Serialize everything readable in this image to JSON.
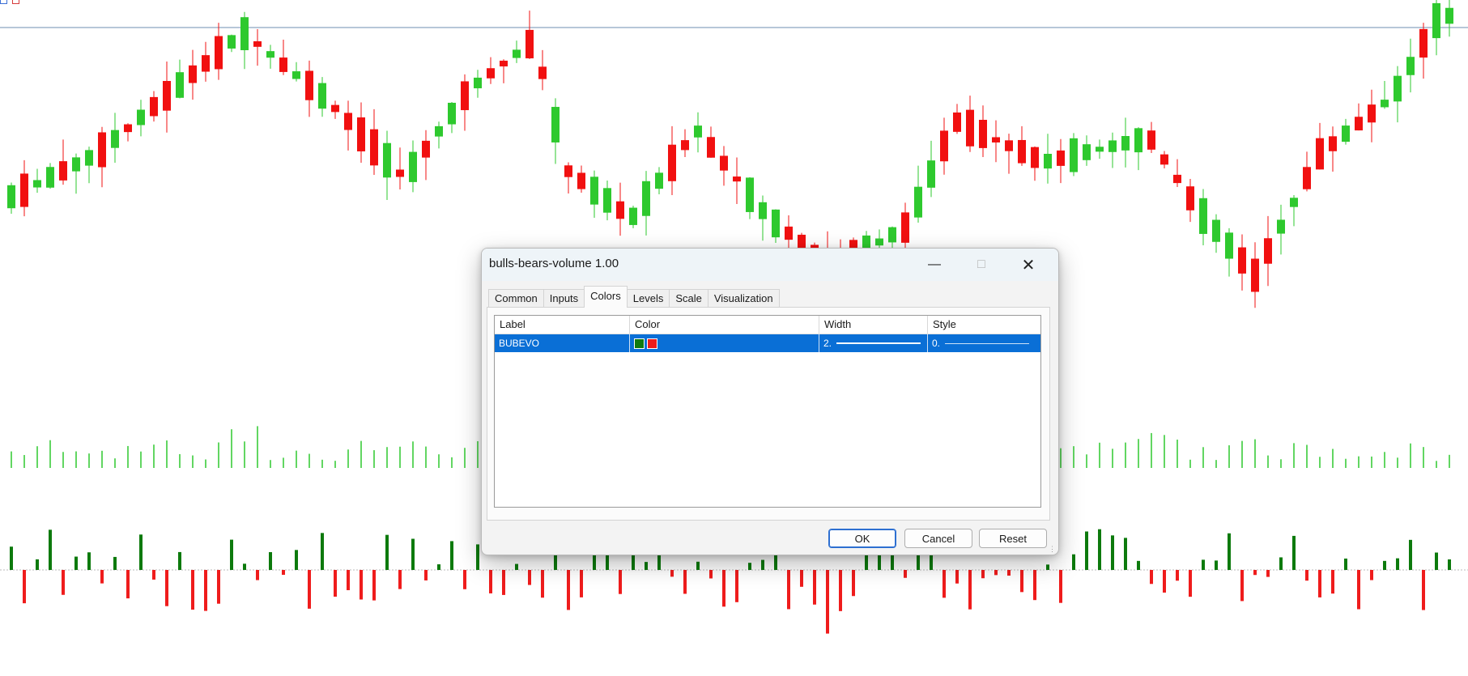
{
  "dialog": {
    "title": "bulls-bears-volume 1.00",
    "tabs": [
      "Common",
      "Inputs",
      "Colors",
      "Levels",
      "Scale",
      "Visualization"
    ],
    "active_tab": "Colors",
    "table": {
      "headers": [
        "Label",
        "Color",
        "Width",
        "Style"
      ],
      "rows": [
        {
          "label": "BUBEVO",
          "colors": [
            "#0f7a0f",
            "#ee1b1b"
          ],
          "width": "2.",
          "style": "0."
        }
      ]
    },
    "buttons": {
      "ok": "OK",
      "cancel": "Cancel",
      "reset": "Reset"
    }
  },
  "colors": {
    "bull": "#2ec92e",
    "bear": "#f11010",
    "bull_volume": "#0d7a0d",
    "bear_volume": "#ef1c1c",
    "level_line": "#6f8fb0",
    "selection": "#0a6fd6"
  },
  "icons": {
    "minimize": "minimize-icon",
    "maximize": "maximize-icon",
    "close": "close-icon",
    "resize": "resize-grip-icon"
  }
}
